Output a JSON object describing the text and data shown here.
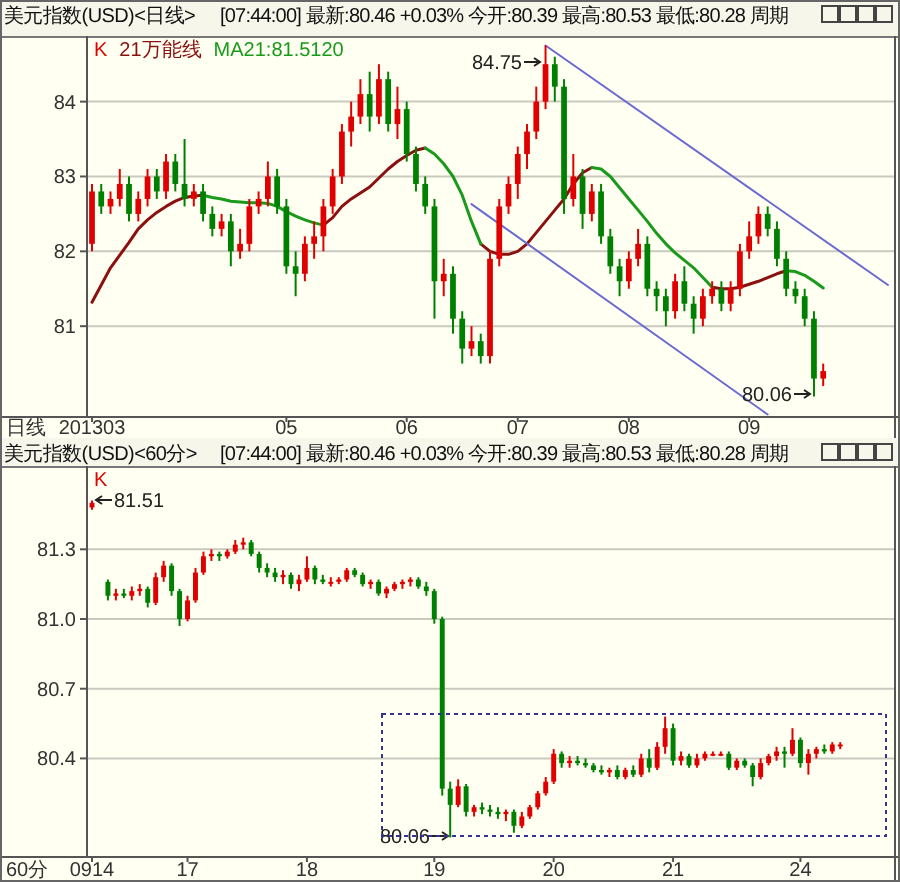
{
  "chart_data": [
    {
      "type": "candlestick",
      "title": "美元指数(USD)<日线>",
      "subtitle": "[07:44:00] 最新:80.46 +0.03% 今开:80.39 最高:80.53 最低:80.28 周期",
      "xlabel": "日线",
      "categories": [
        "201303",
        null,
        null,
        null,
        null,
        null,
        null,
        null,
        null,
        null,
        null,
        null,
        null,
        null,
        null,
        null,
        null,
        null,
        null,
        null,
        null,
        "05",
        null,
        null,
        null,
        null,
        null,
        null,
        null,
        null,
        null,
        null,
        null,
        null,
        "06",
        null,
        null,
        null,
        null,
        null,
        null,
        null,
        null,
        null,
        null,
        null,
        "07",
        null,
        null,
        null,
        null,
        null,
        null,
        null,
        null,
        null,
        null,
        null,
        "08",
        null,
        null,
        null,
        null,
        null,
        null,
        null,
        null,
        null,
        null,
        null,
        null,
        "09",
        null,
        null,
        null,
        null,
        null,
        null,
        null,
        null,
        null,
        null,
        null,
        null,
        null,
        null,
        null
      ],
      "ylim": [
        79.8,
        84.85
      ],
      "yticks": [
        81,
        82,
        83,
        84
      ],
      "grid": "y",
      "legend": "top left",
      "series": [
        {
          "name": "K",
          "type": "candlestick",
          "ohlc": [
            [
              82.1,
              82.9,
              82.0,
              82.8
            ],
            [
              82.8,
              82.9,
              82.5,
              82.6
            ],
            [
              82.6,
              82.8,
              82.5,
              82.7
            ],
            [
              82.7,
              83.1,
              82.6,
              82.9
            ],
            [
              82.9,
              83.0,
              82.4,
              82.5
            ],
            [
              82.5,
              82.8,
              82.4,
              82.7
            ],
            [
              82.7,
              83.1,
              82.6,
              83.0
            ],
            [
              83.0,
              83.1,
              82.7,
              82.8
            ],
            [
              82.8,
              83.3,
              82.7,
              83.2
            ],
            [
              83.2,
              83.3,
              82.8,
              82.9
            ],
            [
              82.9,
              83.5,
              82.6,
              82.7
            ],
            [
              82.7,
              82.9,
              82.6,
              82.8
            ],
            [
              82.8,
              82.9,
              82.4,
              82.5
            ],
            [
              82.5,
              82.6,
              82.2,
              82.3
            ],
            [
              82.3,
              82.5,
              82.2,
              82.4
            ],
            [
              82.4,
              82.5,
              81.8,
              82.0
            ],
            [
              82.0,
              82.3,
              81.9,
              82.1
            ],
            [
              82.1,
              82.7,
              82.0,
              82.6
            ],
            [
              82.6,
              82.8,
              82.5,
              82.7
            ],
            [
              82.7,
              83.2,
              82.6,
              83.0
            ],
            [
              83.0,
              83.1,
              82.5,
              82.6
            ],
            [
              82.6,
              82.7,
              81.7,
              81.8
            ],
            [
              81.8,
              82.0,
              81.4,
              81.7
            ],
            [
              81.7,
              82.2,
              81.6,
              82.1
            ],
            [
              82.1,
              82.4,
              81.9,
              82.2
            ],
            [
              82.2,
              82.7,
              82.0,
              82.6
            ],
            [
              82.6,
              83.1,
              82.5,
              83.0
            ],
            [
              83.0,
              83.7,
              82.9,
              83.6
            ],
            [
              83.6,
              84.0,
              83.4,
              83.8
            ],
            [
              83.8,
              84.3,
              83.7,
              84.1
            ],
            [
              84.1,
              84.4,
              83.6,
              83.8
            ],
            [
              83.8,
              84.5,
              83.7,
              84.3
            ],
            [
              84.3,
              84.4,
              83.6,
              83.7
            ],
            [
              83.7,
              84.2,
              83.5,
              83.9
            ],
            [
              83.9,
              84.0,
              83.2,
              83.3
            ],
            [
              83.3,
              83.4,
              82.8,
              82.9
            ],
            [
              82.9,
              83.0,
              82.5,
              82.6
            ],
            [
              82.6,
              82.7,
              81.1,
              81.6
            ],
            [
              81.6,
              81.9,
              81.4,
              81.7
            ],
            [
              81.7,
              81.8,
              80.9,
              81.1
            ],
            [
              81.1,
              81.2,
              80.5,
              80.7
            ],
            [
              80.7,
              81.0,
              80.6,
              80.8
            ],
            [
              80.8,
              80.9,
              80.5,
              80.6
            ],
            [
              80.6,
              82.0,
              80.5,
              81.9
            ],
            [
              81.9,
              82.7,
              81.8,
              82.6
            ],
            [
              82.6,
              83.0,
              82.5,
              82.9
            ],
            [
              82.9,
              83.4,
              82.7,
              83.3
            ],
            [
              83.3,
              83.7,
              83.1,
              83.6
            ],
            [
              83.6,
              84.2,
              83.5,
              84.0
            ],
            [
              84.0,
              84.75,
              83.9,
              84.5
            ],
            [
              84.5,
              84.6,
              84.0,
              84.2
            ],
            [
              84.2,
              84.3,
              82.5,
              82.7
            ],
            [
              82.7,
              83.3,
              82.6,
              83.0
            ],
            [
              83.0,
              83.1,
              82.3,
              82.5
            ],
            [
              82.5,
              82.9,
              82.4,
              82.8
            ],
            [
              82.8,
              82.9,
              82.1,
              82.2
            ],
            [
              82.2,
              82.3,
              81.7,
              81.8
            ],
            [
              81.8,
              81.9,
              81.4,
              81.6
            ],
            [
              81.6,
              82.0,
              81.5,
              81.9
            ],
            [
              81.9,
              82.3,
              81.8,
              82.1
            ],
            [
              82.1,
              82.2,
              81.4,
              81.5
            ],
            [
              81.5,
              81.6,
              81.2,
              81.4
            ],
            [
              81.4,
              81.5,
              81.0,
              81.2
            ],
            [
              81.2,
              81.7,
              81.1,
              81.6
            ],
            [
              81.6,
              81.8,
              81.2,
              81.3
            ],
            [
              81.3,
              81.4,
              80.9,
              81.1
            ],
            [
              81.1,
              81.5,
              81.0,
              81.4
            ],
            [
              81.4,
              81.6,
              81.3,
              81.5
            ],
            [
              81.5,
              81.6,
              81.2,
              81.3
            ],
            [
              81.3,
              81.6,
              81.2,
              81.5
            ],
            [
              81.5,
              82.1,
              81.4,
              82.0
            ],
            [
              82.0,
              82.4,
              81.9,
              82.2
            ],
            [
              82.2,
              82.6,
              82.1,
              82.5
            ],
            [
              82.5,
              82.6,
              82.2,
              82.3
            ],
            [
              82.3,
              82.4,
              81.8,
              81.9
            ],
            [
              81.9,
              82.0,
              81.4,
              81.5
            ],
            [
              81.5,
              81.6,
              81.3,
              81.4
            ],
            [
              81.4,
              81.5,
              81.0,
              81.1
            ],
            [
              81.1,
              81.2,
              80.06,
              80.3
            ],
            [
              80.3,
              80.5,
              80.2,
              80.4
            ],
            null,
            null,
            null,
            null,
            null,
            null,
            null
          ]
        },
        {
          "name": "21万能线",
          "type": "line",
          "color": "#8b1010",
          "values": [
            81.32,
            81.55,
            81.78,
            81.95,
            82.12,
            82.3,
            82.42,
            82.52,
            82.6,
            82.67,
            82.72,
            82.74,
            82.75,
            null,
            null,
            null,
            null,
            null,
            null,
            null,
            null,
            null,
            null,
            null,
            null,
            82.35,
            82.45,
            82.6,
            82.7,
            82.78,
            82.86,
            82.98,
            83.1,
            83.2,
            83.28,
            83.35,
            83.38,
            null,
            null,
            null,
            null,
            null,
            82.1,
            82.0,
            81.96,
            81.96,
            82.0,
            82.1,
            82.25,
            82.4,
            82.55,
            82.7,
            82.9,
            83.05,
            83.12,
            null,
            null,
            null,
            null,
            null,
            null,
            null,
            null,
            null,
            null,
            null,
            null,
            81.52,
            81.5,
            81.5,
            81.52,
            81.56,
            81.6,
            81.65,
            81.7,
            81.74,
            null,
            null,
            null,
            null,
            null,
            null,
            null,
            null,
            null,
            null,
            null
          ]
        },
        {
          "name": "MA21:81.5120",
          "type": "line",
          "color": "#1a9a1a",
          "values": [
            null,
            null,
            null,
            null,
            null,
            null,
            null,
            null,
            null,
            null,
            null,
            null,
            82.75,
            82.72,
            82.7,
            82.67,
            82.66,
            82.65,
            82.65,
            82.64,
            82.6,
            82.53,
            82.47,
            82.42,
            82.38,
            82.35,
            null,
            null,
            null,
            null,
            null,
            null,
            null,
            null,
            null,
            null,
            83.38,
            83.3,
            83.17,
            83.0,
            82.75,
            82.4,
            82.1,
            null,
            null,
            null,
            null,
            null,
            null,
            null,
            null,
            null,
            null,
            null,
            83.12,
            83.1,
            83.0,
            82.85,
            82.7,
            82.55,
            82.4,
            82.24,
            82.1,
            81.98,
            81.88,
            81.78,
            81.65,
            81.52,
            null,
            null,
            null,
            null,
            null,
            null,
            null,
            81.74,
            81.73,
            81.68,
            81.6,
            81.51,
            null,
            null,
            null,
            null,
            null,
            null,
            null
          ]
        },
        {
          "type": "line",
          "color": "#6a6ad0",
          "values": [
            null,
            null,
            null,
            null,
            null,
            null,
            null,
            null,
            null,
            null,
            null,
            null,
            null,
            null,
            null,
            null,
            null,
            null,
            null,
            null,
            null,
            null,
            null,
            null,
            null,
            null,
            null,
            null,
            null,
            null,
            null,
            null,
            null,
            null,
            null,
            null,
            null,
            null,
            null,
            null,
            null,
            null,
            null,
            null,
            null,
            null,
            null,
            null,
            null,
            84.75,
            null,
            null,
            null,
            null,
            null,
            null,
            null,
            null,
            null,
            null,
            null,
            null,
            null,
            null,
            null,
            null,
            null,
            null,
            null,
            null,
            null,
            null,
            null,
            null,
            null,
            null,
            null,
            null,
            null,
            null,
            null,
            null,
            null,
            null,
            null,
            null,
            81.55
          ]
        },
        {
          "type": "line",
          "color": "#6a6ad0",
          "values": [
            null,
            null,
            null,
            null,
            null,
            null,
            null,
            null,
            null,
            null,
            null,
            null,
            null,
            null,
            null,
            null,
            null,
            null,
            null,
            null,
            null,
            null,
            null,
            null,
            null,
            null,
            null,
            null,
            null,
            null,
            null,
            null,
            null,
            null,
            null,
            null,
            null,
            null,
            null,
            null,
            null,
            82.63,
            null,
            null,
            null,
            null,
            null,
            null,
            null,
            null,
            null,
            null,
            null,
            null,
            null,
            null,
            null,
            null,
            null,
            null,
            null,
            null,
            null,
            null,
            null,
            null,
            null,
            null,
            null,
            null,
            null,
            null,
            null,
            79.82,
            null,
            null,
            null,
            null,
            null,
            null,
            null,
            null,
            null,
            null,
            null,
            null,
            null
          ]
        }
      ],
      "annotations": [
        "84.75",
        "80.06"
      ]
    },
    {
      "type": "candlestick",
      "title": "美元指数(USD)<60分>",
      "subtitle": "[07:44:00] 最新:80.46 +0.03% 今开:80.39 最高:80.53 最低:80.28 周期",
      "xlabel": "60分",
      "categories": [
        "0914",
        null,
        null,
        null,
        null,
        null,
        null,
        null,
        null,
        null,
        null,
        null,
        "17",
        null,
        null,
        null,
        null,
        null,
        null,
        null,
        null,
        null,
        null,
        null,
        null,
        null,
        null,
        "18",
        null,
        null,
        null,
        null,
        null,
        null,
        null,
        null,
        null,
        null,
        null,
        null,
        null,
        null,
        null,
        "19",
        null,
        null,
        null,
        null,
        null,
        null,
        null,
        null,
        null,
        null,
        null,
        null,
        null,
        null,
        "20",
        null,
        null,
        null,
        null,
        null,
        null,
        null,
        null,
        null,
        null,
        null,
        null,
        null,
        null,
        "21",
        null,
        null,
        null,
        null,
        null,
        null,
        null,
        null,
        null,
        null,
        null,
        null,
        null,
        null,
        null,
        "24",
        null,
        null,
        null,
        null,
        null,
        null,
        null,
        null,
        null,
        null,
        null
      ],
      "ylim": [
        79.98,
        81.65
      ],
      "yticks": [
        80.4,
        80.7,
        {
          "value": 81,
          "label": "81.0"
        },
        81.3
      ],
      "grid": "y",
      "legend": "top left",
      "series": [
        {
          "name": "K",
          "type": "candlestick",
          "ohlc": [
            [
              81.48,
              81.51,
              81.47,
              81.5
            ],
            null,
            [
              81.16,
              81.17,
              81.08,
              81.1
            ],
            [
              81.1,
              81.13,
              81.08,
              81.11
            ],
            [
              81.11,
              81.13,
              81.09,
              81.1
            ],
            [
              81.1,
              81.14,
              81.08,
              81.12
            ],
            [
              81.12,
              81.15,
              81.1,
              81.13
            ],
            [
              81.13,
              81.14,
              81.05,
              81.07
            ],
            [
              81.07,
              81.2,
              81.06,
              81.18
            ],
            [
              81.18,
              81.25,
              81.16,
              81.23
            ],
            [
              81.23,
              81.24,
              81.1,
              81.12
            ],
            [
              81.12,
              81.13,
              80.97,
              81.0
            ],
            [
              81.0,
              81.1,
              80.99,
              81.08
            ],
            [
              81.08,
              81.22,
              81.07,
              81.2
            ],
            [
              81.2,
              81.29,
              81.19,
              81.27
            ],
            [
              81.27,
              81.3,
              81.25,
              81.28
            ],
            [
              81.28,
              81.29,
              81.25,
              81.27
            ],
            [
              81.27,
              81.3,
              81.26,
              81.29
            ],
            [
              81.29,
              81.34,
              81.28,
              81.32
            ],
            [
              81.32,
              81.35,
              81.3,
              81.33
            ],
            [
              81.33,
              81.34,
              81.27,
              81.28
            ],
            [
              81.28,
              81.29,
              81.2,
              81.22
            ],
            [
              81.22,
              81.24,
              81.18,
              81.2
            ],
            [
              81.2,
              81.22,
              81.16,
              81.18
            ],
            [
              81.18,
              81.21,
              81.15,
              81.19
            ],
            [
              81.19,
              81.2,
              81.13,
              81.15
            ],
            [
              81.15,
              81.19,
              81.12,
              81.17
            ],
            [
              81.17,
              81.27,
              81.16,
              81.22
            ],
            [
              81.22,
              81.23,
              81.15,
              81.17
            ],
            [
              81.17,
              81.19,
              81.15,
              81.16
            ],
            [
              81.16,
              81.18,
              81.14,
              81.16
            ],
            [
              81.16,
              81.18,
              81.15,
              81.17
            ],
            [
              81.17,
              81.22,
              81.16,
              81.21
            ],
            [
              81.21,
              81.22,
              81.18,
              81.19
            ],
            [
              81.19,
              81.2,
              81.14,
              81.15
            ],
            [
              81.15,
              81.17,
              81.13,
              81.16
            ],
            [
              81.16,
              81.17,
              81.1,
              81.11
            ],
            [
              81.11,
              81.14,
              81.09,
              81.13
            ],
            [
              81.13,
              81.16,
              81.12,
              81.15
            ],
            [
              81.15,
              81.17,
              81.13,
              81.16
            ],
            [
              81.16,
              81.18,
              81.14,
              81.17
            ],
            [
              81.17,
              81.18,
              81.13,
              81.14
            ],
            [
              81.14,
              81.16,
              81.1,
              81.12
            ],
            [
              81.12,
              81.13,
              80.98,
              81.0
            ],
            [
              81.0,
              81.01,
              80.24,
              80.27
            ],
            [
              80.27,
              80.3,
              80.06,
              80.2
            ],
            [
              80.2,
              80.31,
              80.19,
              80.28
            ],
            [
              80.28,
              80.29,
              80.15,
              80.17
            ],
            [
              80.17,
              80.2,
              80.15,
              80.19
            ],
            [
              80.19,
              80.21,
              80.16,
              80.18
            ],
            [
              80.18,
              80.2,
              80.15,
              80.17
            ],
            [
              80.17,
              80.19,
              80.14,
              80.16
            ],
            [
              80.16,
              80.18,
              80.13,
              80.17
            ],
            [
              80.17,
              80.18,
              80.08,
              80.11
            ],
            [
              80.11,
              80.17,
              80.1,
              80.15
            ],
            [
              80.15,
              80.2,
              80.14,
              80.19
            ],
            [
              80.19,
              80.26,
              80.18,
              80.25
            ],
            [
              80.25,
              80.32,
              80.24,
              80.3
            ],
            [
              80.3,
              80.44,
              80.29,
              80.42
            ],
            [
              80.42,
              80.43,
              80.36,
              80.38
            ],
            [
              80.38,
              80.41,
              80.36,
              80.39
            ],
            [
              80.39,
              80.41,
              80.37,
              80.38
            ],
            [
              80.38,
              80.4,
              80.36,
              80.37
            ],
            [
              80.37,
              80.38,
              80.34,
              80.35
            ],
            [
              80.35,
              80.37,
              80.33,
              80.34
            ],
            [
              80.34,
              80.36,
              80.32,
              80.35
            ],
            [
              80.35,
              80.37,
              80.31,
              80.32
            ],
            [
              80.32,
              80.36,
              80.31,
              80.35
            ],
            [
              80.35,
              80.37,
              80.32,
              80.33
            ],
            [
              80.33,
              80.42,
              80.32,
              80.4
            ],
            [
              80.4,
              80.44,
              80.34,
              80.36
            ],
            [
              80.36,
              80.47,
              80.35,
              80.45
            ],
            [
              80.45,
              80.58,
              80.42,
              80.53
            ],
            [
              80.53,
              80.55,
              80.37,
              80.39
            ],
            [
              80.39,
              80.43,
              80.37,
              80.41
            ],
            [
              80.41,
              80.42,
              80.36,
              80.37
            ],
            [
              80.37,
              80.42,
              80.36,
              80.4
            ],
            [
              80.4,
              80.43,
              80.39,
              80.42
            ],
            [
              80.42,
              80.43,
              80.41,
              80.42
            ],
            [
              80.42,
              80.43,
              80.41,
              80.42
            ],
            [
              80.42,
              80.43,
              80.35,
              80.36
            ],
            [
              80.36,
              80.4,
              80.35,
              80.39
            ],
            [
              80.39,
              80.4,
              80.36,
              80.37
            ],
            [
              80.37,
              80.38,
              80.28,
              80.32
            ],
            [
              80.32,
              80.4,
              80.31,
              80.38
            ],
            [
              80.38,
              80.42,
              80.37,
              80.41
            ],
            [
              80.41,
              80.45,
              80.39,
              80.43
            ],
            [
              80.43,
              80.45,
              80.36,
              80.42
            ],
            [
              80.42,
              80.53,
              80.41,
              80.48
            ],
            [
              80.48,
              80.49,
              80.36,
              80.38
            ],
            [
              80.38,
              80.44,
              80.33,
              80.42
            ],
            [
              80.42,
              80.45,
              80.4,
              80.44
            ],
            [
              80.44,
              80.46,
              80.42,
              80.43
            ],
            [
              80.43,
              80.47,
              80.42,
              80.46
            ],
            [
              80.46,
              80.47,
              80.44,
              80.46
            ],
            null,
            null,
            null,
            null,
            null,
            null
          ]
        }
      ],
      "annotations": [
        "81.51",
        "80.06"
      ]
    }
  ]
}
